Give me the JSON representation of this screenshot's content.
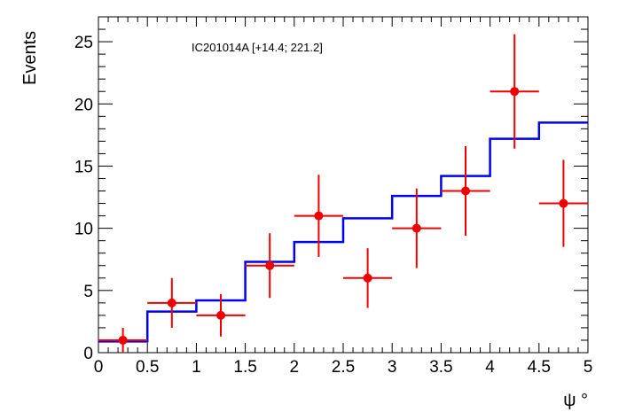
{
  "chart_data": {
    "type": "line",
    "xlabel": "ψ °",
    "ylabel": "Events",
    "xlim": [
      0,
      5
    ],
    "ylim": [
      0,
      27
    ],
    "x_ticks": [
      "0",
      "0.5",
      "1",
      "1.5",
      "2",
      "2.5",
      "3",
      "3.5",
      "4",
      "4.5",
      "5"
    ],
    "y_ticks": [
      "0",
      "5",
      "10",
      "15",
      "20",
      "25"
    ],
    "grid": false,
    "annotation": "IC201014A [+14.4; 221.2]",
    "series": [
      {
        "style": "step",
        "color": "#0000ee",
        "bin_edges": [
          0,
          0.5,
          1,
          1.5,
          2,
          2.5,
          3,
          3.5,
          4,
          4.5,
          5
        ],
        "values": [
          0.9,
          3.3,
          4.2,
          7.3,
          8.9,
          10.8,
          12.6,
          14.2,
          17.2,
          18.5
        ]
      },
      {
        "style": "points",
        "color": "#ee0000",
        "x": [
          0.25,
          0.75,
          1.25,
          1.75,
          2.25,
          2.75,
          3.25,
          3.75,
          4.25,
          4.75
        ],
        "xerr": 0.25,
        "y": [
          1,
          4,
          3,
          7,
          11,
          6,
          10,
          13,
          21,
          12
        ],
        "yerr_low": [
          1,
          2,
          1.7,
          2.6,
          3.3,
          2.4,
          3.2,
          3.6,
          4.6,
          3.5
        ],
        "yerr_high": [
          1,
          2,
          1.7,
          2.6,
          3.3,
          2.4,
          3.2,
          3.6,
          4.6,
          3.5
        ]
      }
    ]
  }
}
